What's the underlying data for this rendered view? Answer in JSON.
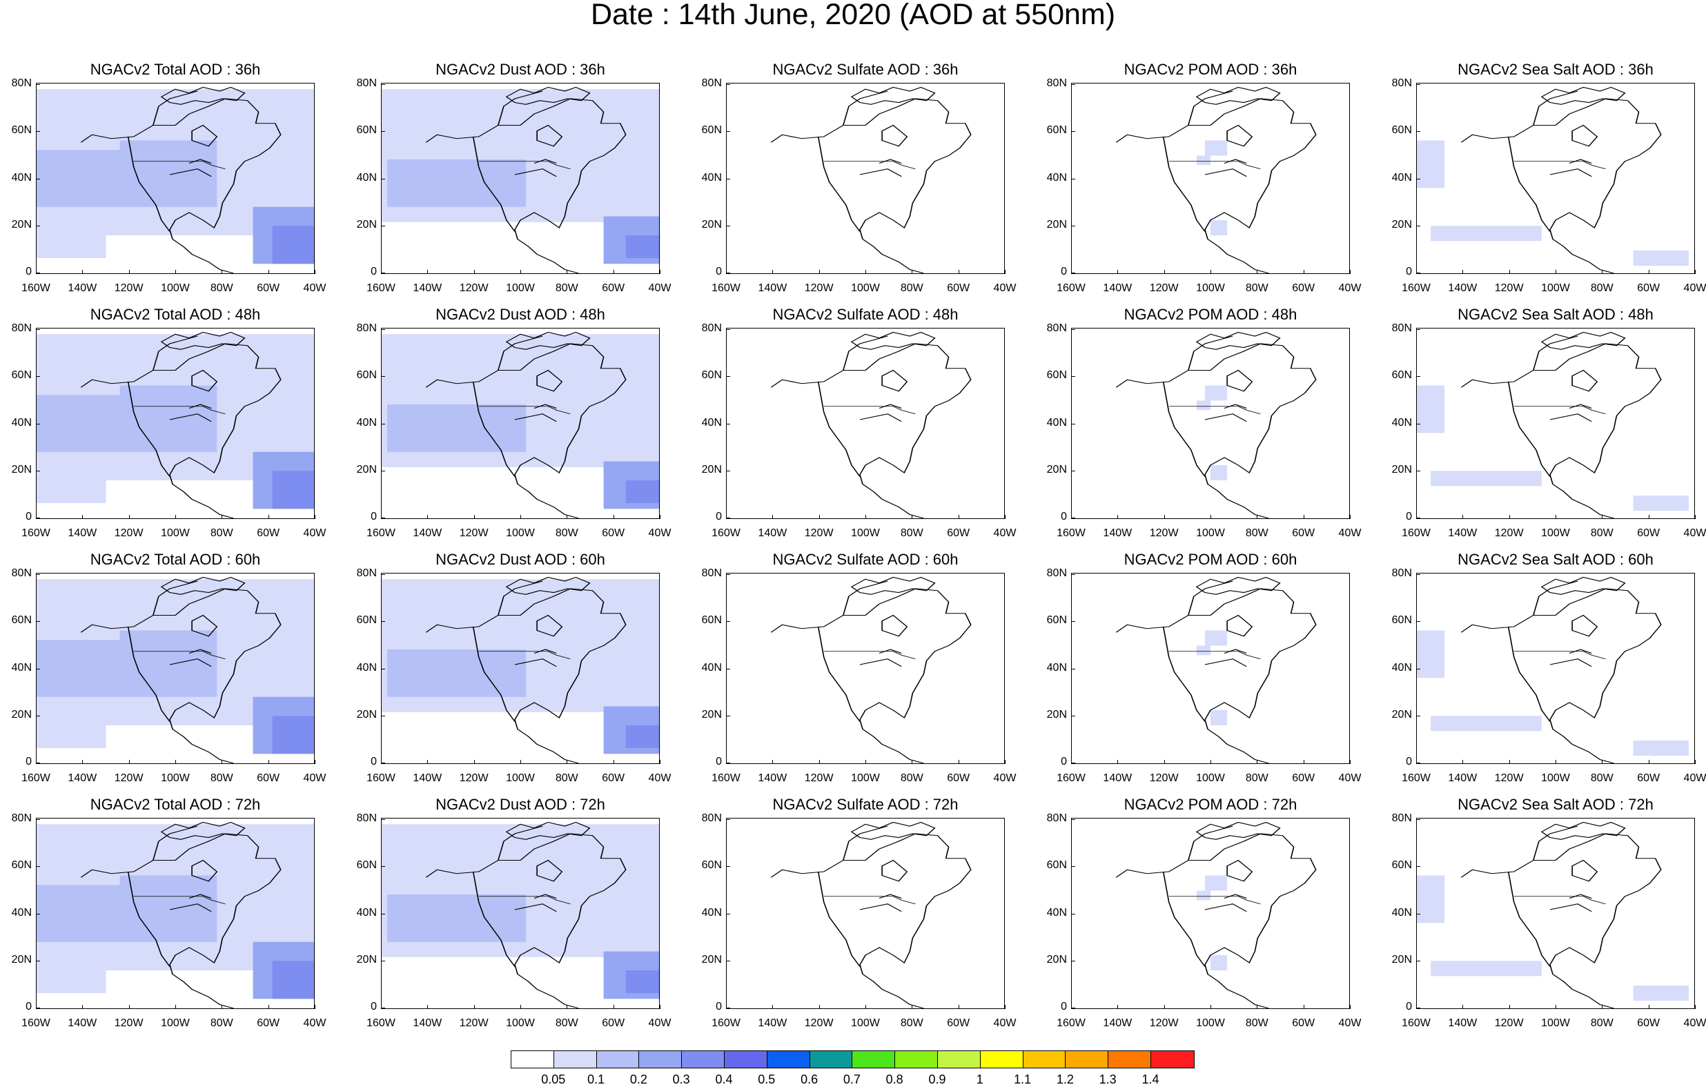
{
  "title": "Date : 14th June, 2020 (AOD at 550nm)",
  "rows": [
    {
      "hour": "36h",
      "titles": [
        "NGACv2 Total AOD : 36h",
        "NGACv2 Dust AOD : 36h",
        "NGACv2 Sulfate AOD : 36h",
        "NGACv2 POM AOD : 36h",
        "NGACv2 Sea Salt AOD : 36h"
      ]
    },
    {
      "hour": "48h",
      "titles": [
        "NGACv2 Total AOD : 48h",
        "NGACv2 Dust AOD : 48h",
        "NGACv2 Sulfate AOD : 48h",
        "NGACv2 POM AOD : 48h",
        "NGACv2 Sea Salt AOD : 48h"
      ]
    },
    {
      "hour": "60h",
      "titles": [
        "NGACv2 Total AOD : 60h",
        "NGACv2 Dust AOD : 60h",
        "NGACv2 Sulfate AOD : 60h",
        "NGACv2 POM AOD : 60h",
        "NGACv2 Sea Salt AOD : 60h"
      ]
    },
    {
      "hour": "72h",
      "titles": [
        "NGACv2 Total AOD : 72h",
        "NGACv2 Dust AOD : 72h",
        "NGACv2 Sulfate AOD : 72h",
        "NGACv2 POM AOD : 72h",
        "NGACv2 Sea Salt  AOD : 72h"
      ]
    }
  ],
  "lat_labels": [
    "80N",
    "60N",
    "40N",
    "20N",
    "0"
  ],
  "lon_labels": [
    "160W",
    "140W",
    "120W",
    "100W",
    "80W",
    "60W",
    "40W"
  ],
  "colorbar": {
    "colors": [
      "#ffffff",
      "#d6dcfa",
      "#b4c0f6",
      "#95a6f3",
      "#7e8df0",
      "#6368ed",
      "#0a60f0",
      "#0a9a9a",
      "#4ce61a",
      "#88f014",
      "#c4f542",
      "#ffff00",
      "#ffc400",
      "#ffa800",
      "#ff7800",
      "#ff1e1e"
    ],
    "labels": [
      "0.05",
      "0.1",
      "0.2",
      "0.3",
      "0.4",
      "0.5",
      "0.6",
      "0.7",
      "0.8",
      "0.9",
      "1",
      "1.1",
      "1.2",
      "1.3",
      "1.4"
    ]
  },
  "species_intensity": {
    "Total": "high",
    "Dust": "medium",
    "Sulfate": "none",
    "POM": "low",
    "Sea Salt": "low"
  }
}
